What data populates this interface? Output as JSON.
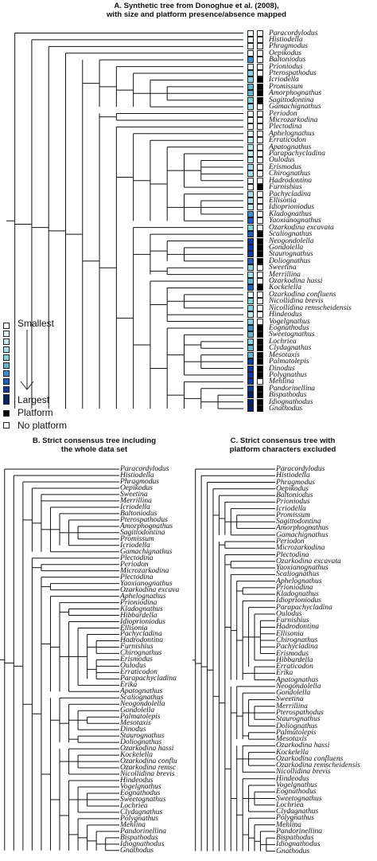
{
  "panelA": {
    "title_line1": "A. Synthetic tree from Donoghue et al. (2008),",
    "title_line2": "with size and platform presence/absence mapped",
    "taxa": [
      "Paracordylodus",
      "Histiodella",
      "Phragmodus",
      "Oepikodus",
      "Baltoniodus",
      "Prioniodus",
      "Pterospathodus",
      "Icriodella",
      "Promissum",
      "Amorphognathus",
      "Sagittodontina",
      "Gamachignathus",
      "Periodon",
      "Microzarkodina",
      "Plectodina",
      "Aphelognathus",
      "Erraticodon",
      "Apatognathus",
      "Parapachycladina",
      "Oulodus",
      "Erismodus",
      "Chirognathus",
      "Hadrodontina",
      "Furnishius",
      "Pachycladina",
      "Ellisonia",
      "Idioprioniodus",
      "Kladognathus",
      "Yaoxianognathus",
      "Ozarkodina excavata",
      "Scaliognathus",
      "Neogondolella",
      "Gondolella",
      "Staurognathus",
      "Doliognathus",
      "Sweetina",
      "Merrillina",
      "Ozarkodina hassi",
      "Kockelella",
      "Ozarkodina confluens",
      "Nicollidina brevis",
      "Nicollidina remscheidensis",
      "Hindeodus",
      "Vogelgnathus",
      "Eognathodus",
      "Sweetognathus",
      "Lochriea",
      "Clydagnathus",
      "Mesotaxis",
      "Palmatolepis",
      "Dinodus",
      "Polygnathus",
      "Mehlina",
      "Pandorinellina",
      "Bispathodus",
      "Idiognathodus",
      "Gnathodus"
    ],
    "size_class": [
      0,
      0,
      0,
      0,
      6,
      1,
      4,
      4,
      5,
      5,
      4,
      3,
      0,
      0,
      0,
      1,
      2,
      2,
      2,
      2,
      3,
      3,
      1,
      0,
      3,
      3,
      2,
      6,
      7,
      4,
      7,
      8,
      8,
      8,
      7,
      4,
      3,
      5,
      7,
      1,
      4,
      4,
      2,
      4,
      6,
      5,
      4,
      5,
      5,
      8,
      8,
      8,
      8,
      8,
      9,
      9,
      9
    ],
    "platform": [
      0,
      0,
      0,
      0,
      0,
      0,
      0,
      1,
      1,
      1,
      1,
      0,
      0,
      0,
      0,
      0,
      0,
      0,
      0,
      0,
      0,
      0,
      0,
      1,
      0,
      0,
      0,
      0,
      0,
      0,
      1,
      1,
      1,
      1,
      1,
      0,
      0,
      0,
      1,
      0,
      0,
      0,
      0,
      0,
      1,
      1,
      1,
      1,
      1,
      1,
      1,
      1,
      0,
      1,
      1,
      1,
      1
    ],
    "size_colors": [
      "#f3fbfb",
      "#dff3f5",
      "#c2e9ec",
      "#a4dde3",
      "#86d0d8",
      "#5fb8cf",
      "#3b8ed0",
      "#1f5fc0",
      "#103a9a",
      "#06226e"
    ],
    "platform_color": "#000000",
    "no_platform_color": "#ffffff"
  },
  "legend": {
    "smallest": "Smallest",
    "largest": "Largest",
    "platform": "Platform",
    "no_platform": "No platform"
  },
  "panelB": {
    "title_line1": "B. Strict consensus tree including",
    "title_line2": "the whole data set",
    "taxa": [
      "Paracordylodus",
      "Histiodella",
      "Phragmodus",
      "Oepikodus",
      "Sweetina",
      "Merrillina",
      "Icriodella",
      "Baltoniodus",
      "Pterospathodus",
      "Amorphognathus",
      "Sagittodontina",
      "Promissum",
      "Icriodella",
      "Gamachignathus",
      "Plectodina",
      "Periodon",
      "Microzarkodina",
      "Plectodina",
      "Yaoxianognathus",
      "Ozarkodina excava",
      "Aphelognathus",
      "Prioniodina",
      "Kladognathus",
      "Hibbardella",
      "Idioprioniodus",
      "Ellisonia",
      "Pachycladina",
      "Hadrodontina",
      "Furnishius",
      "Chirognathus",
      "Erismodus",
      "Oulodus",
      "Erraticodon",
      "Parapachycladina",
      "Erika",
      "Apatognathus",
      "Scaliognathus",
      "Neogondolella",
      "Gondolella",
      "Palmatolepis",
      "Mesotaxis",
      "Dinodus",
      "Staurognathus",
      "Doliognathus",
      "Ozarkodina hassi",
      "Kockelella",
      "Ozarkodina conflu",
      "Ozarkodina remsc",
      "Nicollidina brevis",
      "Hindeodus",
      "Vogelgnathus",
      "Eognathodus",
      "Sweetognathus",
      "Lochriea",
      "Clydagnathus",
      "Polygnathus",
      "Mehlina",
      "Pandorinellina",
      "Bispathodus",
      "Idiognathodus",
      "Gnathodus"
    ]
  },
  "panelC": {
    "title_line1": "C. Strict consensus tree with",
    "title_line2": "platform characters excluded",
    "taxa": [
      "Paracordylodus",
      "Histiodella",
      "Phragmodus",
      "Oepikodus",
      "Baltoniodus",
      "Prioniodus",
      "Icriodella",
      "Promissum",
      "Sagittodontina",
      "Amorphognathus",
      "Gamachignathus",
      "Periodon",
      "Microzarkodina",
      "Plectodina",
      "Ozarkodina excavata",
      "Yaoxianognathus",
      "Scaliognathus",
      "Aphelognathus",
      "Prioniodina",
      "Kladognathus",
      "Idioprioniodus",
      "Parapachycladina",
      "Oulodus",
      "Furnishius",
      "Hadrodontina",
      "Ellisonia",
      "Chirognathus",
      "Pachycladina",
      "Erismodus",
      "Hibbardella",
      "Erraticodon",
      "Erika",
      "Apatognathus",
      "Neogondolella",
      "Gondolella",
      "Sweetina",
      "Merrillina",
      "Pterospathodus",
      "Staurognathus",
      "Doliognathus",
      "Palmatolepis",
      "Mesotaxis",
      "Ozarkodina hassi",
      "Kockelella",
      "Ozarkodina confluens",
      "Ozarkodina remscheidensis",
      "Nicollidina brevis",
      "Hindeodus",
      "Vogelgnathus",
      "Eognathodus",
      "Sweetognathus",
      "Lochriea",
      "Clydagnathus",
      "Polygnathus",
      "Mehlina",
      "Pandorinellina",
      "Bispathodus",
      "Idiognathodus",
      "Gnathodus"
    ]
  }
}
